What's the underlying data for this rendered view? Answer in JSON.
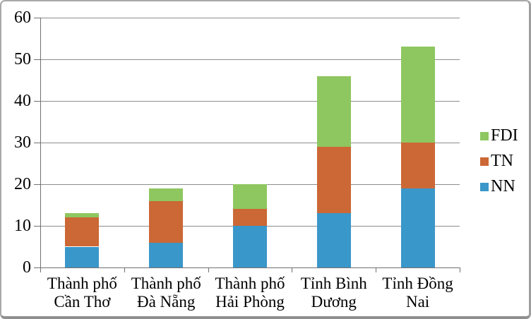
{
  "figure": {
    "background": "#ffffff",
    "border_color": "#a9a9a9"
  },
  "chart_data": {
    "type": "bar",
    "stacked": true,
    "title": "",
    "xlabel": "",
    "ylabel": "",
    "categories": [
      "Thành phố Cần Thơ",
      "Thành phố Đà Nẵng",
      "Thành phố Hải Phòng",
      "Tỉnh Bình Dương",
      "Tỉnh Đồng Nai"
    ],
    "series": [
      {
        "name": "NN",
        "color": "#3a97c9",
        "values": [
          5,
          6,
          10,
          13,
          19
        ]
      },
      {
        "name": "TN",
        "color": "#cb6835",
        "values": [
          7,
          10,
          4,
          16,
          11
        ]
      },
      {
        "name": "FDI",
        "color": "#8ec75f",
        "values": [
          1,
          3,
          6,
          17,
          23
        ]
      }
    ],
    "stack_totals": [
      13,
      19,
      20,
      46,
      53
    ],
    "ylim": [
      0,
      60
    ],
    "yticks": [
      0,
      10,
      20,
      30,
      40,
      50,
      60
    ],
    "grid": "horizontal",
    "legend": {
      "position": "right",
      "order": [
        "FDI",
        "TN",
        "NN"
      ]
    },
    "colors": {
      "gridline": "#8c8c8c",
      "axis": "#707070",
      "text": "#000000"
    }
  }
}
